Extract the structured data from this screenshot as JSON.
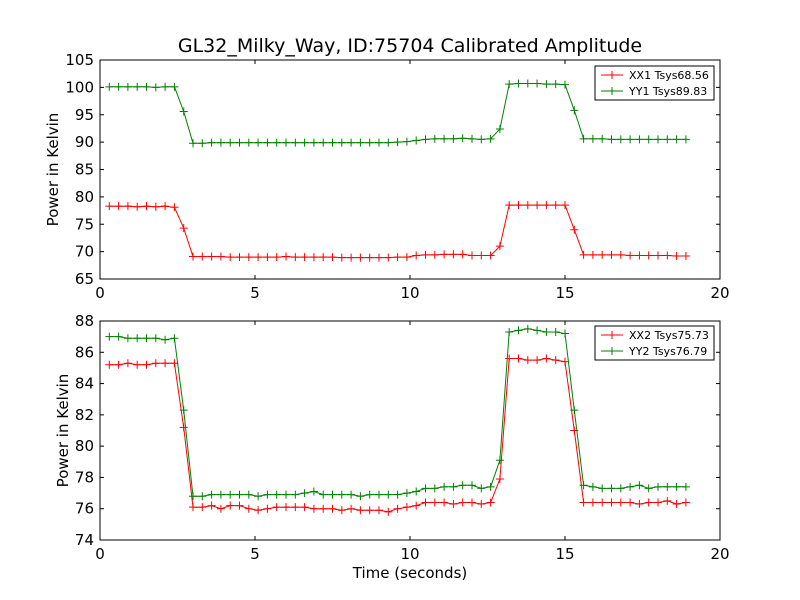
{
  "figure": {
    "title": "GL32_Milky_Way, ID:75704 Calibrated Amplitude"
  },
  "chart_data": [
    {
      "type": "line",
      "title": "GL32_Milky_Way, ID:75704 Calibrated Amplitude",
      "xlabel": "",
      "ylabel": "Power in Kelvin",
      "xlim": [
        0,
        20
      ],
      "ylim": [
        65,
        105
      ],
      "xticks": [
        0,
        5,
        10,
        15,
        20
      ],
      "yticks": [
        65,
        70,
        75,
        80,
        85,
        90,
        95,
        100,
        105
      ],
      "grid": false,
      "legend_position": "top-right",
      "x": [
        0.3,
        0.6,
        0.9,
        1.2,
        1.5,
        1.8,
        2.1,
        2.4,
        2.7,
        3.0,
        3.3,
        3.6,
        3.9,
        4.2,
        4.5,
        4.8,
        5.1,
        5.4,
        5.7,
        6.0,
        6.3,
        6.6,
        6.9,
        7.2,
        7.5,
        7.8,
        8.1,
        8.4,
        8.7,
        9.0,
        9.3,
        9.6,
        9.9,
        10.2,
        10.5,
        10.8,
        11.1,
        11.4,
        11.7,
        12.0,
        12.3,
        12.6,
        12.9,
        13.2,
        13.5,
        13.8,
        14.1,
        14.4,
        14.7,
        15.0,
        15.3,
        15.6,
        15.9,
        16.2,
        16.5,
        16.8,
        17.1,
        17.4,
        17.7,
        18.0,
        18.3,
        18.6,
        18.9
      ],
      "series": [
        {
          "name": "XX1 Tsys68.56",
          "color": "#ff0000",
          "values": [
            78.3,
            78.3,
            78.3,
            78.2,
            78.3,
            78.2,
            78.3,
            78.1,
            74.3,
            69.1,
            69.1,
            69.1,
            69.1,
            69.0,
            69.0,
            69.0,
            69.0,
            69.0,
            69.0,
            69.1,
            69.0,
            69.0,
            69.0,
            69.0,
            69.0,
            68.9,
            68.9,
            68.9,
            68.9,
            68.9,
            68.9,
            69.0,
            69.0,
            69.3,
            69.4,
            69.4,
            69.5,
            69.5,
            69.5,
            69.3,
            69.3,
            69.3,
            71.0,
            78.5,
            78.5,
            78.5,
            78.5,
            78.5,
            78.5,
            78.5,
            74.0,
            69.4,
            69.4,
            69.4,
            69.4,
            69.4,
            69.3,
            69.3,
            69.3,
            69.3,
            69.3,
            69.2,
            69.2
          ]
        },
        {
          "name": "YY1 Tsys89.83",
          "color": "#008000",
          "values": [
            100.1,
            100.1,
            100.1,
            100.1,
            100.1,
            100.0,
            100.1,
            100.1,
            95.6,
            89.8,
            89.8,
            89.9,
            89.9,
            89.9,
            89.9,
            89.9,
            89.9,
            89.9,
            89.9,
            89.9,
            89.9,
            89.9,
            89.9,
            89.9,
            89.9,
            89.9,
            89.9,
            89.9,
            89.9,
            89.9,
            89.9,
            90.0,
            90.1,
            90.3,
            90.5,
            90.6,
            90.6,
            90.6,
            90.7,
            90.6,
            90.5,
            90.6,
            92.4,
            100.6,
            100.7,
            100.7,
            100.7,
            100.6,
            100.6,
            100.5,
            95.8,
            90.6,
            90.6,
            90.6,
            90.5,
            90.5,
            90.5,
            90.5,
            90.5,
            90.5,
            90.5,
            90.5,
            90.5
          ]
        }
      ]
    },
    {
      "type": "line",
      "title": "",
      "xlabel": "Time (seconds)",
      "ylabel": "Power in Kelvin",
      "xlim": [
        0,
        20
      ],
      "ylim": [
        74,
        88
      ],
      "xticks": [
        0,
        5,
        10,
        15,
        20
      ],
      "yticks": [
        74,
        76,
        78,
        80,
        82,
        84,
        86,
        88
      ],
      "grid": false,
      "legend_position": "top-right",
      "x": [
        0.3,
        0.6,
        0.9,
        1.2,
        1.5,
        1.8,
        2.1,
        2.4,
        2.7,
        3.0,
        3.3,
        3.6,
        3.9,
        4.2,
        4.5,
        4.8,
        5.1,
        5.4,
        5.7,
        6.0,
        6.3,
        6.6,
        6.9,
        7.2,
        7.5,
        7.8,
        8.1,
        8.4,
        8.7,
        9.0,
        9.3,
        9.6,
        9.9,
        10.2,
        10.5,
        10.8,
        11.1,
        11.4,
        11.7,
        12.0,
        12.3,
        12.6,
        12.9,
        13.2,
        13.5,
        13.8,
        14.1,
        14.4,
        14.7,
        15.0,
        15.3,
        15.6,
        15.9,
        16.2,
        16.5,
        16.8,
        17.1,
        17.4,
        17.7,
        18.0,
        18.3,
        18.6,
        18.9
      ],
      "series": [
        {
          "name": "XX2 Tsys75.73",
          "color": "#ff0000",
          "values": [
            85.2,
            85.2,
            85.3,
            85.2,
            85.2,
            85.3,
            85.3,
            85.3,
            81.2,
            76.1,
            76.1,
            76.2,
            76.0,
            76.2,
            76.2,
            76.0,
            75.9,
            76.0,
            76.1,
            76.1,
            76.1,
            76.1,
            76.0,
            76.0,
            76.0,
            75.9,
            76.0,
            75.9,
            75.9,
            75.9,
            75.8,
            76.0,
            76.1,
            76.2,
            76.4,
            76.4,
            76.4,
            76.3,
            76.4,
            76.4,
            76.3,
            76.4,
            77.9,
            85.6,
            85.6,
            85.5,
            85.5,
            85.6,
            85.5,
            85.4,
            81.0,
            76.4,
            76.4,
            76.4,
            76.4,
            76.4,
            76.4,
            76.3,
            76.4,
            76.4,
            76.5,
            76.3,
            76.4
          ]
        },
        {
          "name": "YY2 Tsys76.79",
          "color": "#008000",
          "values": [
            87.0,
            87.0,
            86.9,
            86.9,
            86.9,
            86.9,
            86.8,
            86.9,
            82.3,
            76.8,
            76.8,
            76.9,
            76.9,
            76.9,
            76.9,
            76.9,
            76.8,
            76.9,
            76.9,
            76.9,
            76.9,
            77.0,
            77.1,
            76.9,
            76.9,
            76.9,
            76.9,
            76.8,
            76.9,
            76.9,
            76.9,
            76.9,
            77.0,
            77.1,
            77.3,
            77.3,
            77.4,
            77.4,
            77.5,
            77.5,
            77.3,
            77.4,
            79.1,
            87.3,
            87.4,
            87.5,
            87.4,
            87.3,
            87.3,
            87.2,
            82.3,
            77.5,
            77.4,
            77.3,
            77.3,
            77.3,
            77.4,
            77.5,
            77.3,
            77.4,
            77.4,
            77.4,
            77.4
          ]
        }
      ]
    }
  ]
}
